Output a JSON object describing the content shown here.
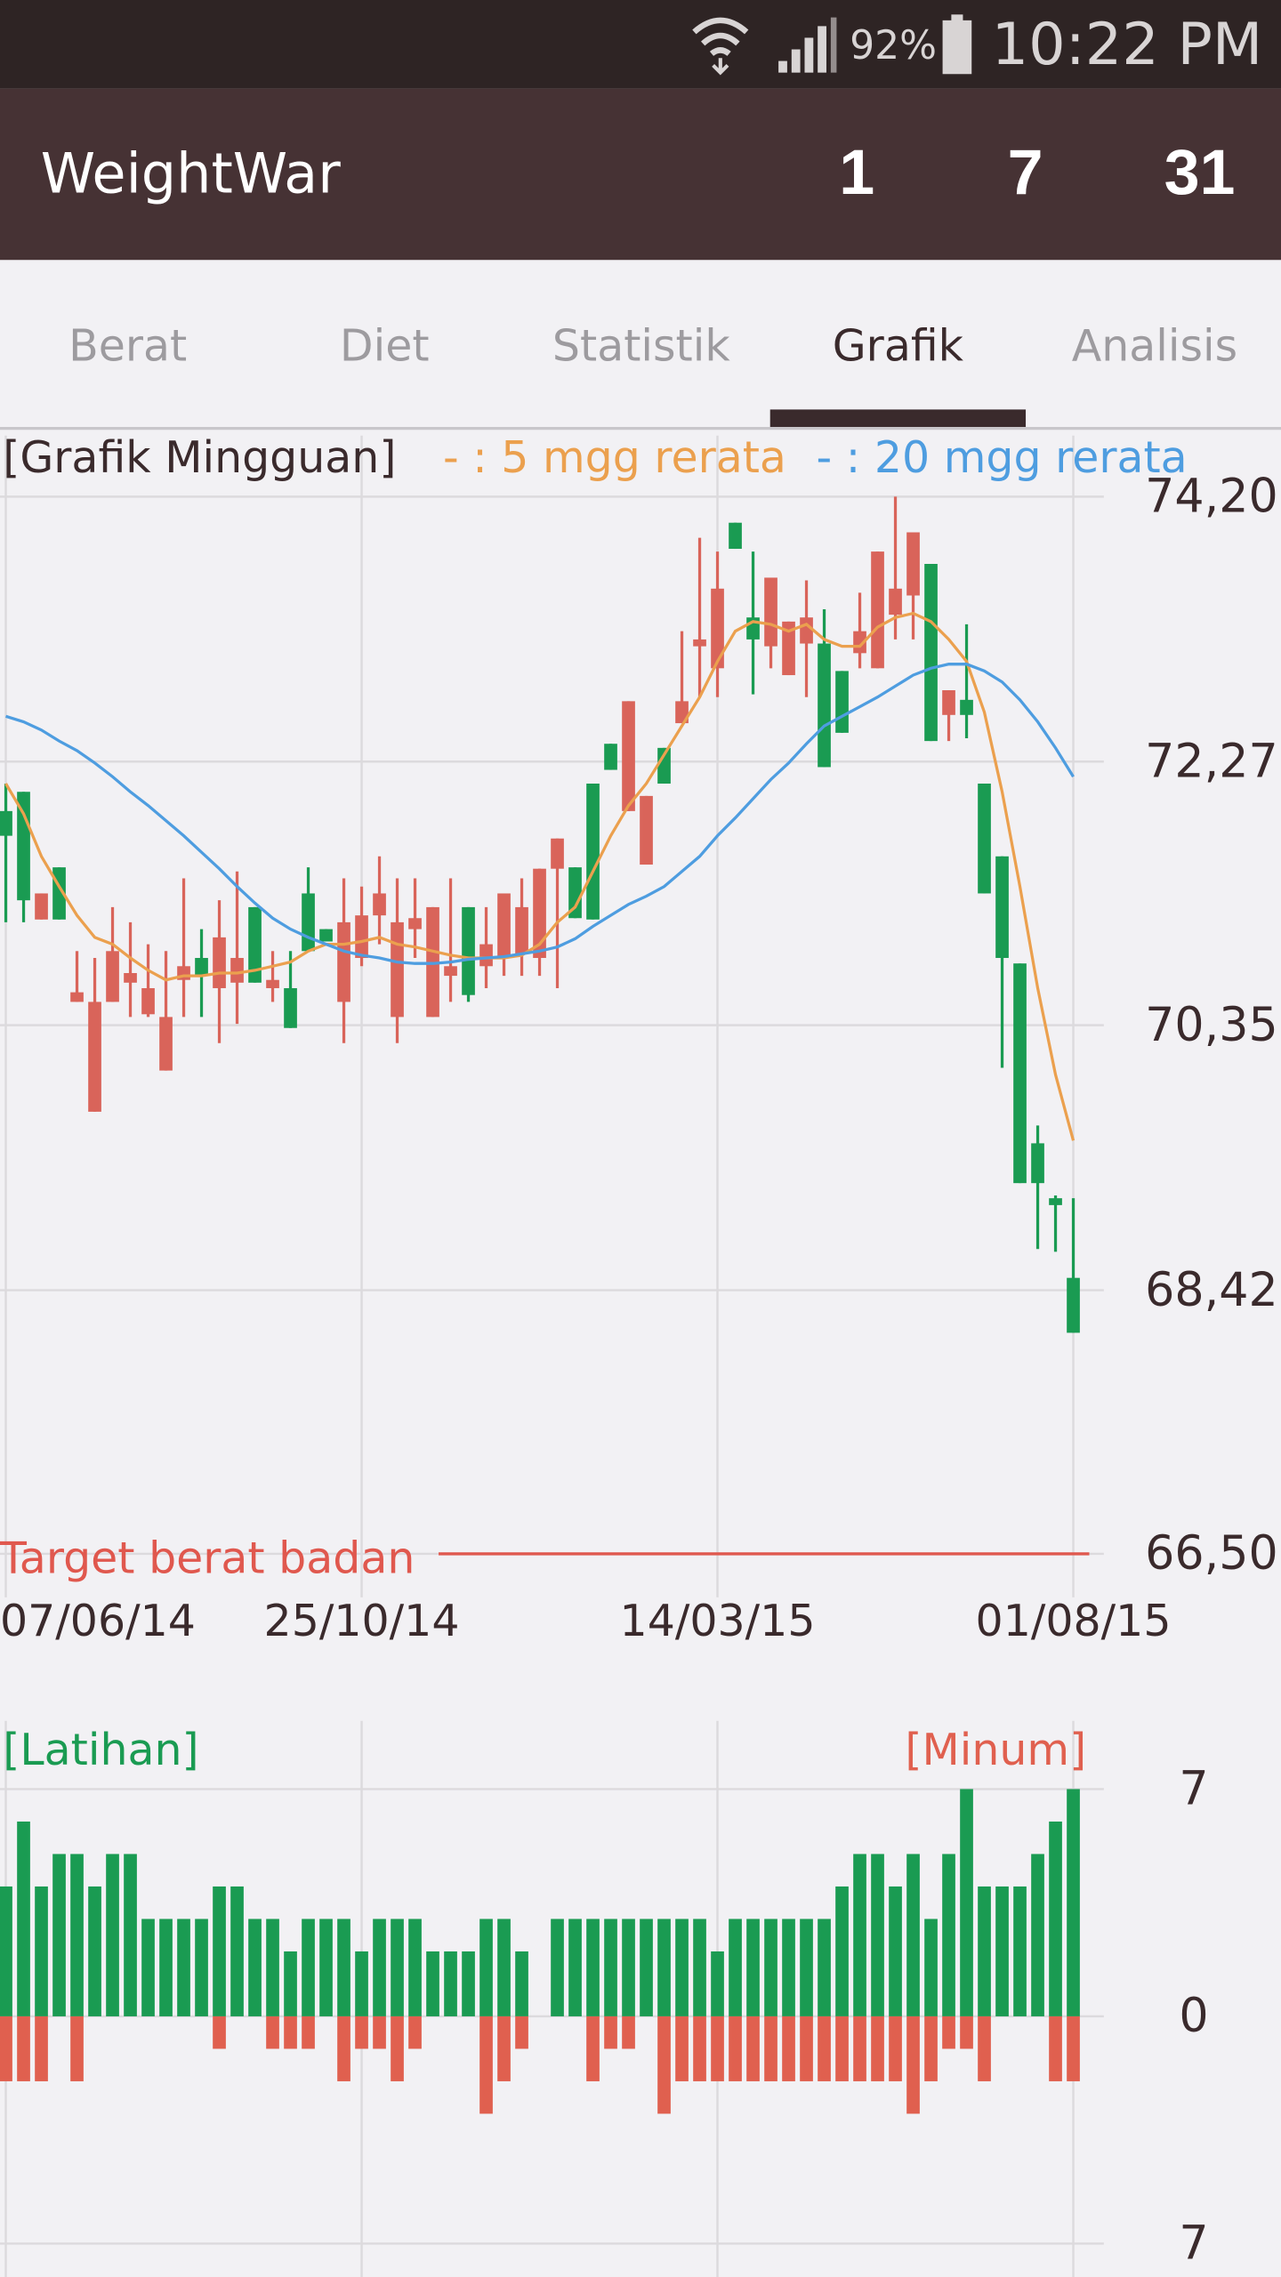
{
  "status_bar": {
    "battery": "92%",
    "time": "10:22 PM"
  },
  "app_bar": {
    "title": "WeightWar",
    "counters": [
      1,
      7,
      31
    ]
  },
  "tabs": {
    "items": [
      "Berat",
      "Diet",
      "Statistik",
      "Grafik",
      "Analisis"
    ],
    "selected": 3
  },
  "chart_data": [
    {
      "type": "candlestick",
      "title": "[Grafik Mingguan]",
      "categories": [
        "07/06/14",
        null,
        null,
        null,
        null,
        null,
        null,
        null,
        null,
        null,
        null,
        null,
        null,
        null,
        null,
        null,
        null,
        null,
        null,
        null,
        "25/10/14",
        null,
        null,
        null,
        null,
        null,
        null,
        null,
        null,
        null,
        null,
        null,
        null,
        null,
        null,
        null,
        null,
        null,
        null,
        null,
        "14/03/15",
        null,
        null,
        null,
        null,
        null,
        null,
        null,
        null,
        null,
        null,
        null,
        null,
        null,
        null,
        null,
        null,
        null,
        null,
        null,
        "01/08/15"
      ],
      "open": [
        71.91,
        72.05,
        71.12,
        71.5,
        70.52,
        69.72,
        70.52,
        70.66,
        70.43,
        70.02,
        70.68,
        70.84,
        70.62,
        70.66,
        71.21,
        70.62,
        70.62,
        71.31,
        71.05,
        70.52,
        70.84,
        71.15,
        70.41,
        71.05,
        70.41,
        70.71,
        71.21,
        70.78,
        70.84,
        70.87,
        70.84,
        71.49,
        71.5,
        72.11,
        72.4,
        71.91,
        71.52,
        72.37,
        72.55,
        73.11,
        72.95,
        74.01,
        73.32,
        73.11,
        72.9,
        73.13,
        73.13,
        72.93,
        73.06,
        72.95,
        73.34,
        73.48,
        73.71,
        72.61,
        72.72,
        72.11,
        71.58,
        70.8,
        69.49,
        69.09,
        68.51
      ],
      "high": [
        72.11,
        72.05,
        71.31,
        71.5,
        70.89,
        70.84,
        71.21,
        71.1,
        70.94,
        70.89,
        71.42,
        71.05,
        71.26,
        71.47,
        71.21,
        70.89,
        70.89,
        71.5,
        71.05,
        71.42,
        71.36,
        71.58,
        71.42,
        71.42,
        71.21,
        71.42,
        71.21,
        71.21,
        71.31,
        71.42,
        71.49,
        71.71,
        71.5,
        72.11,
        72.4,
        72.71,
        72.02,
        72.37,
        73.22,
        73.9,
        73.8,
        74.01,
        73.8,
        73.61,
        73.29,
        73.59,
        73.38,
        72.93,
        73.5,
        73.8,
        74.2,
        73.94,
        73.71,
        72.79,
        73.27,
        72.11,
        71.58,
        70.8,
        69.62,
        69.11,
        69.09
      ],
      "low": [
        71.1,
        71.1,
        71.12,
        71.12,
        70.52,
        69.72,
        70.52,
        70.41,
        70.41,
        70.02,
        70.41,
        70.41,
        70.22,
        70.36,
        70.66,
        70.52,
        70.33,
        70.89,
        70.96,
        70.22,
        70.78,
        70.94,
        70.22,
        70.84,
        70.41,
        70.52,
        70.52,
        70.62,
        70.71,
        70.71,
        70.71,
        70.62,
        71.13,
        71.12,
        72.21,
        71.91,
        71.52,
        72.11,
        72.55,
        72.74,
        72.74,
        73.82,
        72.76,
        72.95,
        72.9,
        72.74,
        72.23,
        72.48,
        72.95,
        72.95,
        73.16,
        73.16,
        72.42,
        72.42,
        72.44,
        71.31,
        70.04,
        69.2,
        68.72,
        68.7,
        68.11
      ],
      "close": [
        71.73,
        71.26,
        71.31,
        71.12,
        70.59,
        70.52,
        70.89,
        70.73,
        70.62,
        70.41,
        70.78,
        70.71,
        70.99,
        70.84,
        70.66,
        70.68,
        70.33,
        70.89,
        70.96,
        71.1,
        71.15,
        71.31,
        71.1,
        71.13,
        71.21,
        70.78,
        70.57,
        70.94,
        71.31,
        71.21,
        71.49,
        71.71,
        71.13,
        71.12,
        72.21,
        72.71,
        72.02,
        72.11,
        72.71,
        73.16,
        73.53,
        73.82,
        73.16,
        73.61,
        73.29,
        73.32,
        72.23,
        72.48,
        73.22,
        73.8,
        73.53,
        73.94,
        72.42,
        72.79,
        72.61,
        71.31,
        70.84,
        69.2,
        69.2,
        69.04,
        68.11
      ],
      "rise_color": "#d9645a",
      "fall_color": "#1a9b52",
      "lines": [
        {
          "name": "- : 5 mgg rerata",
          "color": "#eba04e",
          "values": [
            72.11,
            71.89,
            71.58,
            71.36,
            71.15,
            70.99,
            70.94,
            70.84,
            70.75,
            70.68,
            70.71,
            70.71,
            70.73,
            70.73,
            70.75,
            70.78,
            70.81,
            70.89,
            70.94,
            70.94,
            70.96,
            70.99,
            70.94,
            70.92,
            70.89,
            70.86,
            70.84,
            70.84,
            70.84,
            70.86,
            70.94,
            71.1,
            71.21,
            71.47,
            71.73,
            71.95,
            72.11,
            72.32,
            72.53,
            72.74,
            73.0,
            73.22,
            73.29,
            73.27,
            73.22,
            73.27,
            73.16,
            73.11,
            73.11,
            73.25,
            73.32,
            73.35,
            73.29,
            73.16,
            73.0,
            72.63,
            72.05,
            71.36,
            70.62,
            69.99,
            69.51
          ]
        },
        {
          "name": "- : 20 mgg rerata",
          "color": "#4e9de0",
          "values": [
            72.6,
            72.56,
            72.5,
            72.42,
            72.35,
            72.26,
            72.16,
            72.05,
            71.95,
            71.84,
            71.73,
            71.61,
            71.49,
            71.36,
            71.24,
            71.13,
            71.05,
            70.99,
            70.94,
            70.89,
            70.86,
            70.84,
            70.81,
            70.8,
            70.8,
            70.81,
            70.83,
            70.84,
            70.85,
            70.87,
            70.89,
            70.92,
            70.98,
            71.07,
            71.15,
            71.23,
            71.29,
            71.36,
            71.47,
            71.58,
            71.73,
            71.86,
            72.0,
            72.14,
            72.26,
            72.4,
            72.53,
            72.6,
            72.67,
            72.74,
            72.82,
            72.9,
            72.95,
            72.98,
            72.98,
            72.93,
            72.85,
            72.72,
            72.56,
            72.37,
            72.16
          ]
        }
      ],
      "target": {
        "label": "Target berat badan",
        "value": 66.5,
        "color": "#e0584e"
      },
      "ylim": [
        66.5,
        74.2
      ],
      "yticks": [
        {
          "value": 74.2,
          "label": "74,20"
        },
        {
          "value": 72.27,
          "label": "72,27"
        },
        {
          "value": 70.35,
          "label": "70,35"
        },
        {
          "value": 68.42,
          "label": "68,42"
        },
        {
          "value": 66.5,
          "label": "66,50"
        }
      ],
      "grid": true
    },
    {
      "type": "bar",
      "series": [
        {
          "name": "[Latihan]",
          "color": "#1a9b52",
          "values": [
            4,
            6,
            4,
            5,
            5,
            4,
            5,
            5,
            3,
            3,
            3,
            3,
            4,
            4,
            3,
            3,
            2,
            3,
            3,
            3,
            2,
            3,
            3,
            3,
            2,
            2,
            2,
            3,
            3,
            2,
            0,
            3,
            3,
            3,
            3,
            3,
            3,
            3,
            3,
            3,
            2,
            3,
            3,
            3,
            3,
            3,
            3,
            4,
            5,
            5,
            4,
            5,
            3,
            5,
            7,
            4,
            4,
            4,
            5,
            6,
            7
          ]
        },
        {
          "name": "[Minum]",
          "color": "#e0604f",
          "values": [
            -2,
            -2,
            -2,
            0,
            -2,
            0,
            0,
            0,
            0,
            0,
            0,
            0,
            -1,
            0,
            0,
            -1,
            -1,
            -1,
            0,
            -2,
            -1,
            -1,
            -2,
            -1,
            0,
            0,
            0,
            -3,
            -2,
            -1,
            0,
            0,
            0,
            -2,
            -1,
            -1,
            0,
            -3,
            -2,
            -2,
            -2,
            -2,
            -2,
            -2,
            -2,
            -2,
            -2,
            -2,
            -2,
            -2,
            -2,
            -3,
            -2,
            -1,
            -1,
            -2,
            0,
            0,
            0,
            -2,
            -2
          ]
        }
      ],
      "ylim": [
        -7,
        7
      ],
      "yticks": [
        7,
        0,
        {
          "value": -7,
          "label": "7"
        }
      ],
      "grid": true
    }
  ]
}
